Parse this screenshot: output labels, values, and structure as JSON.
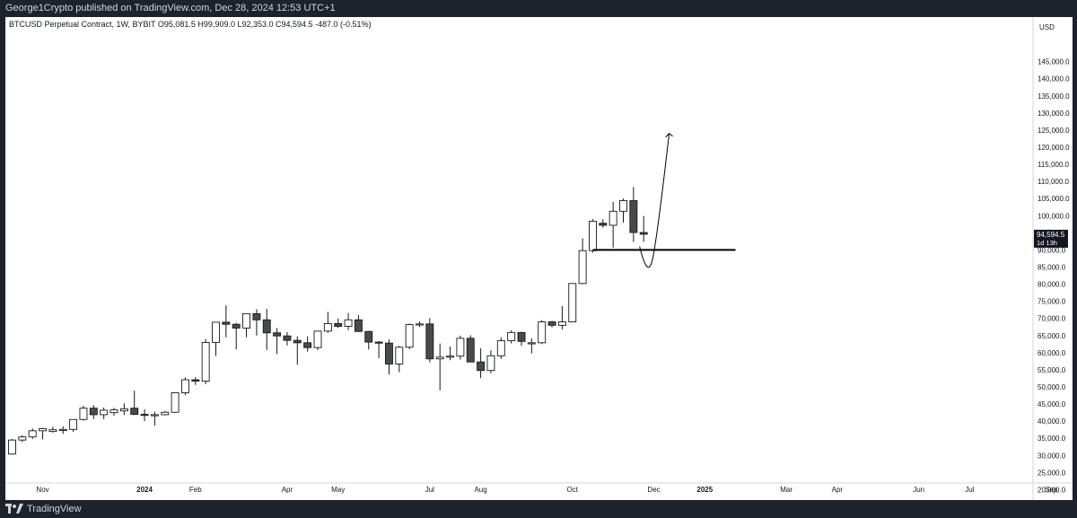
{
  "header": {
    "published_text": "George1Crypto published on TradingView.com, Dec 28, 2024 12:53 UTC+1"
  },
  "legend": {
    "text": "BTCUSD Perpetual Contract, 1W, BYBIT  O95,081.5  H99,909.0  L92,353.0  C94,594.5  -487.0 (-0.51%)"
  },
  "footer": {
    "brand": "TradingView"
  },
  "colors": {
    "up_body": "#ffffff",
    "down_body": "#4a4a4a",
    "wick": "#131722",
    "price_tag": "#131722",
    "background": "#ffffff",
    "frame": "#1e222d"
  },
  "chart_data": {
    "type": "candlestick",
    "timeframe": "1W",
    "currency_label": "USD",
    "ylim": [
      17500,
      152500
    ],
    "y_ticks": [
      {
        "value": 145000,
        "label": "145,000.0"
      },
      {
        "value": 140000,
        "label": "140,000.0"
      },
      {
        "value": 135000,
        "label": "135,000.0"
      },
      {
        "value": 130000,
        "label": "130,000.0"
      },
      {
        "value": 125000,
        "label": "125,000.0"
      },
      {
        "value": 120000,
        "label": "120,000.0"
      },
      {
        "value": 115000,
        "label": "115,000.0"
      },
      {
        "value": 110000,
        "label": "110,000.0"
      },
      {
        "value": 105000,
        "label": "105,000.0"
      },
      {
        "value": 100000,
        "label": "100,000.0"
      },
      {
        "value": 90000,
        "label": "90,000.0"
      },
      {
        "value": 85000,
        "label": "85,000.0"
      },
      {
        "value": 80000,
        "label": "80,000.0"
      },
      {
        "value": 75000,
        "label": "75,000.0"
      },
      {
        "value": 70000,
        "label": "70,000.0"
      },
      {
        "value": 65000,
        "label": "65,000.0"
      },
      {
        "value": 60000,
        "label": "60,000.0"
      },
      {
        "value": 55000,
        "label": "55,000.0"
      },
      {
        "value": 50000,
        "label": "50,000.0"
      },
      {
        "value": 45000,
        "label": "45,000.0"
      },
      {
        "value": 40000,
        "label": "40,000.0"
      },
      {
        "value": 35000,
        "label": "35,000.0"
      },
      {
        "value": 30000,
        "label": "30,000.0"
      },
      {
        "value": 25000,
        "label": "25,000.0"
      },
      {
        "value": 20000,
        "label": "20,000.0"
      }
    ],
    "x_ticks": [
      {
        "index": 3,
        "label": "Nov"
      },
      {
        "index": 13,
        "label": "2024"
      },
      {
        "index": 18,
        "label": "Feb"
      },
      {
        "index": 27,
        "label": "Apr"
      },
      {
        "index": 32,
        "label": "May"
      },
      {
        "index": 41,
        "label": "Jul"
      },
      {
        "index": 46,
        "label": "Aug"
      },
      {
        "index": 55,
        "label": "Oct"
      },
      {
        "index": 63,
        "label": "Dec"
      },
      {
        "index": 68,
        "label": "2025"
      },
      {
        "index": 76,
        "label": "Mar"
      },
      {
        "index": 81,
        "label": "Apr"
      },
      {
        "index": 89,
        "label": "Jun"
      },
      {
        "index": 94,
        "label": "Jul"
      },
      {
        "index": 102,
        "label": "Sep"
      }
    ],
    "last_price": {
      "value": 94594.5,
      "label": "94,594.5",
      "countdown": "1d 13h"
    },
    "candles": [
      {
        "o": 30400,
        "h": 34800,
        "l": 30200,
        "c": 34500
      },
      {
        "o": 34500,
        "h": 35900,
        "l": 33900,
        "c": 35400
      },
      {
        "o": 35400,
        "h": 37900,
        "l": 34800,
        "c": 37200
      },
      {
        "o": 37200,
        "h": 38000,
        "l": 34700,
        "c": 37800
      },
      {
        "o": 37000,
        "h": 38400,
        "l": 36700,
        "c": 37500
      },
      {
        "o": 37500,
        "h": 38500,
        "l": 36300,
        "c": 37600
      },
      {
        "o": 37600,
        "h": 40300,
        "l": 36900,
        "c": 40500
      },
      {
        "o": 40500,
        "h": 44500,
        "l": 40200,
        "c": 43800
      },
      {
        "o": 43800,
        "h": 44700,
        "l": 40600,
        "c": 41900
      },
      {
        "o": 41900,
        "h": 44000,
        "l": 40600,
        "c": 43200
      },
      {
        "o": 42500,
        "h": 43900,
        "l": 41600,
        "c": 43300
      },
      {
        "o": 43000,
        "h": 45200,
        "l": 41800,
        "c": 43600
      },
      {
        "o": 43800,
        "h": 48900,
        "l": 41800,
        "c": 42000
      },
      {
        "o": 42000,
        "h": 43500,
        "l": 40000,
        "c": 41800
      },
      {
        "o": 41800,
        "h": 42800,
        "l": 38700,
        "c": 41900
      },
      {
        "o": 41900,
        "h": 43000,
        "l": 41700,
        "c": 42600
      },
      {
        "o": 42600,
        "h": 48400,
        "l": 42400,
        "c": 48300
      },
      {
        "o": 48300,
        "h": 52800,
        "l": 47600,
        "c": 52100
      },
      {
        "o": 52100,
        "h": 52900,
        "l": 50600,
        "c": 51700
      },
      {
        "o": 51700,
        "h": 64000,
        "l": 50800,
        "c": 63000
      },
      {
        "o": 63000,
        "h": 69000,
        "l": 59100,
        "c": 68900
      },
      {
        "o": 68900,
        "h": 73800,
        "l": 64500,
        "c": 68300
      },
      {
        "o": 68300,
        "h": 68700,
        "l": 61000,
        "c": 67200
      },
      {
        "o": 67200,
        "h": 71500,
        "l": 64500,
        "c": 71400
      },
      {
        "o": 71400,
        "h": 72700,
        "l": 65000,
        "c": 69600
      },
      {
        "o": 69600,
        "h": 72800,
        "l": 60800,
        "c": 65800
      },
      {
        "o": 65800,
        "h": 67200,
        "l": 59600,
        "c": 64900
      },
      {
        "o": 64900,
        "h": 66000,
        "l": 62100,
        "c": 63600
      },
      {
        "o": 63600,
        "h": 64800,
        "l": 56500,
        "c": 62900
      },
      {
        "o": 62900,
        "h": 64800,
        "l": 60300,
        "c": 61500
      },
      {
        "o": 61500,
        "h": 66300,
        "l": 60800,
        "c": 66300
      },
      {
        "o": 66300,
        "h": 71900,
        "l": 65800,
        "c": 68500
      },
      {
        "o": 68500,
        "h": 70000,
        "l": 67200,
        "c": 67700
      },
      {
        "o": 67700,
        "h": 71600,
        "l": 66600,
        "c": 69600
      },
      {
        "o": 69600,
        "h": 71000,
        "l": 66000,
        "c": 66200
      },
      {
        "o": 66200,
        "h": 66400,
        "l": 60900,
        "c": 63100
      },
      {
        "o": 63100,
        "h": 63400,
        "l": 58400,
        "c": 62800
      },
      {
        "o": 62800,
        "h": 63900,
        "l": 53600,
        "c": 56700
      },
      {
        "o": 56700,
        "h": 62000,
        "l": 54300,
        "c": 61600
      },
      {
        "o": 61600,
        "h": 68500,
        "l": 61000,
        "c": 68200
      },
      {
        "o": 68300,
        "h": 69100,
        "l": 67500,
        "c": 68400
      },
      {
        "o": 68400,
        "h": 70100,
        "l": 57200,
        "c": 58200
      },
      {
        "o": 58200,
        "h": 62700,
        "l": 49000,
        "c": 58700
      },
      {
        "o": 58700,
        "h": 61800,
        "l": 57800,
        "c": 59000
      },
      {
        "o": 59000,
        "h": 65000,
        "l": 58000,
        "c": 64200
      },
      {
        "o": 64200,
        "h": 65100,
        "l": 57200,
        "c": 57300
      },
      {
        "o": 57300,
        "h": 61300,
        "l": 52600,
        "c": 54800
      },
      {
        "o": 54800,
        "h": 60700,
        "l": 54000,
        "c": 59100
      },
      {
        "o": 59100,
        "h": 64500,
        "l": 58200,
        "c": 63500
      },
      {
        "o": 63500,
        "h": 66500,
        "l": 62700,
        "c": 65900
      },
      {
        "o": 65900,
        "h": 66100,
        "l": 62000,
        "c": 63300
      },
      {
        "o": 62800,
        "h": 64200,
        "l": 59800,
        "c": 62900
      },
      {
        "o": 62900,
        "h": 69500,
        "l": 62500,
        "c": 69000
      },
      {
        "o": 69000,
        "h": 69300,
        "l": 67400,
        "c": 68000
      },
      {
        "o": 68000,
        "h": 73600,
        "l": 66800,
        "c": 69000
      },
      {
        "o": 69000,
        "h": 80300,
        "l": 68900,
        "c": 80200
      },
      {
        "o": 80200,
        "h": 93400,
        "l": 80000,
        "c": 89800
      },
      {
        "o": 89800,
        "h": 99000,
        "l": 89200,
        "c": 98400
      },
      {
        "o": 97800,
        "h": 99000,
        "l": 96500,
        "c": 97200
      },
      {
        "o": 97200,
        "h": 104000,
        "l": 90700,
        "c": 101300
      },
      {
        "o": 101300,
        "h": 105000,
        "l": 98000,
        "c": 104400
      },
      {
        "o": 104400,
        "h": 108400,
        "l": 92300,
        "c": 95100
      },
      {
        "o": 95081.5,
        "h": 99909,
        "l": 92353,
        "c": 94594.5
      }
    ],
    "annotations": {
      "support_line": {
        "value": 90000,
        "from_index": 57,
        "to_index": 63
      },
      "projection_path": [
        {
          "index": 61.6,
          "value": 91000
        },
        {
          "index": 62.3,
          "value": 86800
        },
        {
          "index": 63.8,
          "value": 104000
        },
        {
          "index": 64.5,
          "value": 124000
        }
      ]
    }
  }
}
